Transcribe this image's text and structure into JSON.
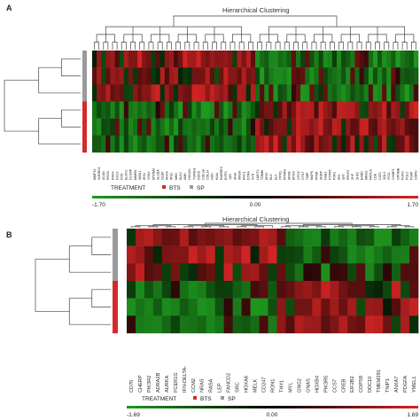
{
  "chart_data": [
    {
      "type": "heatmap",
      "panel_label": "A",
      "title": "Hierarchical Clustering",
      "rows": 6,
      "row_groups": [
        "SP",
        "SP",
        "SP",
        "BTS",
        "BTS",
        "BTS"
      ],
      "columns": [
        "MMP13",
        "SORBS1",
        "ACAN",
        "RHO1",
        "RAN4",
        "DCS1",
        "FOS",
        "ELOVL",
        "DLGAP",
        "MMRN",
        "WAN1",
        "IRS1",
        "VSN4",
        "MYOM3",
        "SLCBA",
        "OLEP",
        "ANXA",
        "IRS2",
        "MKD",
        "KLK2",
        "AMH",
        "HOXAS",
        "TSPAN1",
        "DOCK",
        "COLSA",
        "COL14",
        "NDN",
        "KIAA",
        "RARRES",
        "EXPS",
        "JUN",
        "SNAI",
        "WASA",
        "RHC1",
        "DTRA",
        "SYN",
        "LMVT4",
        "TOMM",
        "MYO",
        "ELK",
        "ELF",
        "ITPR1",
        "PPARG",
        "ARSB",
        "EPHA",
        "CPCK",
        "CTNT",
        "TIMP",
        "MAPK",
        "PPAR",
        "SNRP",
        "NAB1",
        "PTPRF",
        "FGF2",
        "IPO",
        "SPT",
        "RPLP2",
        "ZHF",
        "ZHF2",
        "BARD",
        "MRAS",
        "PAPCA",
        "LDB",
        "CAT1",
        "SOL3",
        "ITGA",
        "CHMP1",
        "GPNMB",
        "FGFG",
        "FOL3",
        "PSAP",
        "CORN"
      ],
      "column_groups": [
        "G1",
        "G1",
        "G1",
        "G1",
        "G1",
        "G1",
        "G1",
        "G1",
        "G1",
        "G1",
        "G1",
        "G1",
        "G1",
        "G1",
        "G1",
        "G1",
        "G1",
        "G1",
        "G1",
        "G1",
        "G1",
        "G1",
        "G1",
        "G1",
        "G1",
        "G1",
        "G1",
        "G1",
        "G1",
        "G1",
        "G1",
        "G1",
        "G1",
        "G1",
        "G1",
        "G1",
        "G2",
        "G2",
        "G2",
        "G2",
        "G2",
        "G2",
        "G2",
        "G2",
        "G2",
        "G2",
        "G2",
        "G2",
        "G2",
        "G2",
        "G2",
        "G2",
        "G2",
        "G2",
        "G2",
        "G2",
        "G2",
        "G2",
        "G2",
        "G2",
        "G2",
        "G2",
        "G2",
        "G2",
        "G2",
        "G2",
        "G2",
        "G2",
        "G2",
        "G2",
        "G2",
        "G2"
      ],
      "legend_title": "TREATMENT",
      "legend_items": [
        {
          "label": "BTS",
          "color": "#d42a2a"
        },
        {
          "label": "SP",
          "color": "#9a9a9a"
        }
      ],
      "scale_min": "-1.70",
      "scale_mid": "0.00",
      "scale_max": "1.70",
      "vmin": -1.7,
      "vmax": 1.7,
      "colors": {
        "low": "#1f9a1f",
        "mid": "#000000",
        "high": "#d42424"
      }
    },
    {
      "type": "heatmap",
      "panel_label": "B",
      "title": "Hierarchical Clustering",
      "rows": 6,
      "row_groups": [
        "SP",
        "SP",
        "SP",
        "BTS",
        "BTS",
        "BTS"
      ],
      "columns": [
        "CD70",
        "CHERP",
        "PIK3R2",
        "ADRA2B",
        "AURKA",
        "FCER1G",
        "IFN-DELTA-",
        "CCM2",
        "NRAS",
        "RASA",
        "LEP",
        "FANCD2",
        "SRC",
        "HOXA6",
        "MELK",
        "CD247",
        "RON1",
        "THY1",
        "MYL",
        "GNG2",
        "GNAS",
        "HOXB4",
        "PIK3R5",
        "CCS7",
        "CREB",
        "EIF2B2",
        "COPS8",
        "DDC10",
        "TMEM291",
        "TNIP1",
        "ANXA7",
        "PDGFA",
        "YMEL1"
      ],
      "column_groups": [
        "G1",
        "G1",
        "G1",
        "G1",
        "G1",
        "G1",
        "G1",
        "G1",
        "G1",
        "G1",
        "G1",
        "G1",
        "G1",
        "G1",
        "G1",
        "G1",
        "G1",
        "G2",
        "G2",
        "G2",
        "G2",
        "G2",
        "G2",
        "G2",
        "G2",
        "G2",
        "G2",
        "G2",
        "G2",
        "G2",
        "G2",
        "G2",
        "G2"
      ],
      "legend_title": "TREATMENT",
      "legend_items": [
        {
          "label": "BTS",
          "color": "#d42a2a"
        },
        {
          "label": "SP",
          "color": "#9a9a9a"
        }
      ],
      "scale_min": "-1.69",
      "scale_mid": "0.00",
      "scale_max": "1.69",
      "vmin": -1.69,
      "vmax": 1.69,
      "colors": {
        "low": "#1f9a1f",
        "mid": "#000000",
        "high": "#d42424"
      }
    }
  ]
}
